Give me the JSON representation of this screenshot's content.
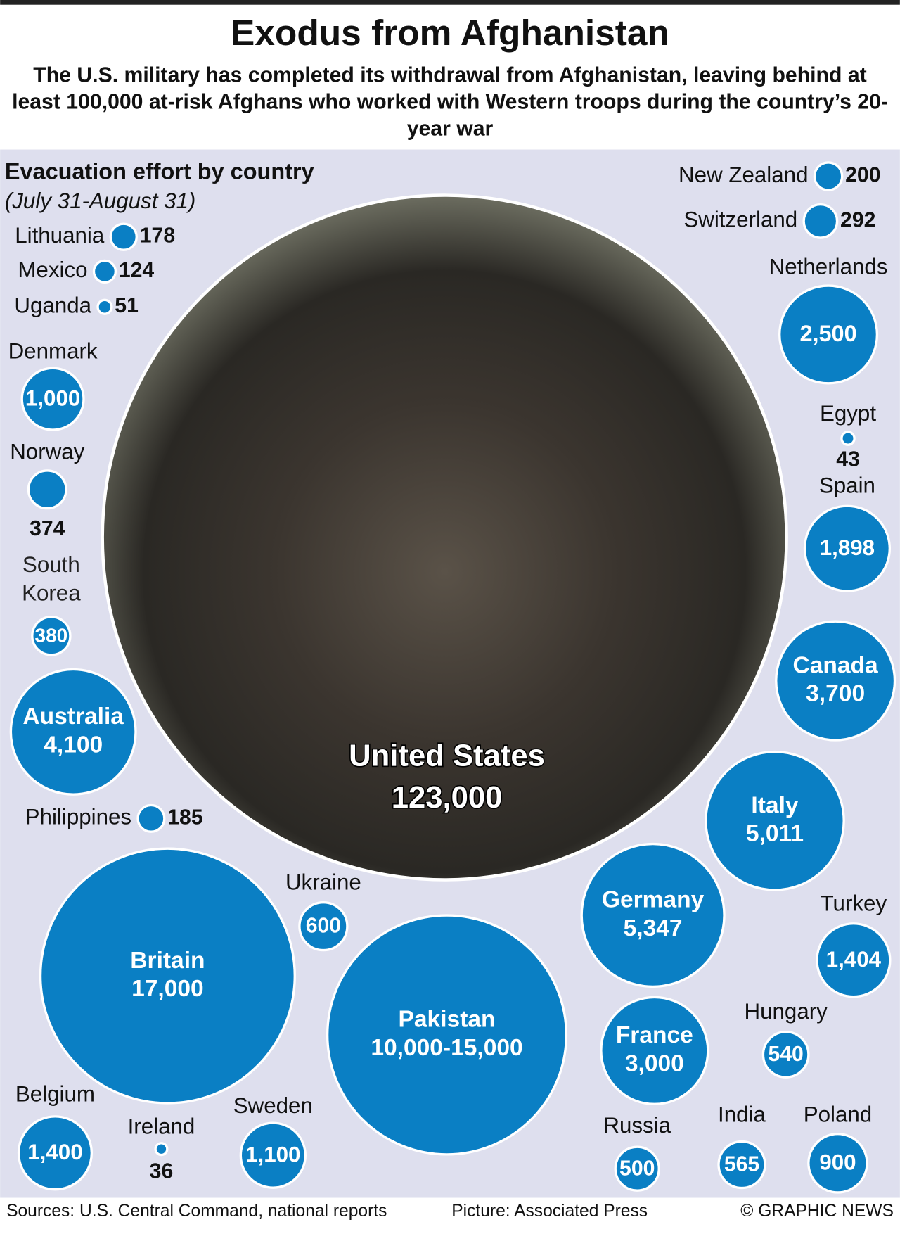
{
  "header": {
    "title": "Exodus from Afghanistan",
    "subtitle": "The U.S. military has completed its withdrawal from Afghanistan, leaving behind at least 100,000 at-risk Afghans who worked with Western troops during the country’s 20-year war"
  },
  "chart_data": {
    "type": "bubble",
    "title": "Evacuation effort by country",
    "subtitle": "(July 31-August 31)",
    "color": "#0a7fc4",
    "categories": [
      "United States",
      "Britain",
      "Pakistan",
      "Germany",
      "Italy",
      "Australia",
      "Canada",
      "France",
      "Netherlands",
      "Spain",
      "Turkey",
      "Belgium",
      "Sweden",
      "Denmark",
      "Poland",
      "Ukraine",
      "India",
      "Hungary",
      "Russia",
      "South Korea",
      "Norway",
      "Switzerland",
      "New Zealand",
      "Philippines",
      "Lithuania",
      "Mexico",
      "Uganda",
      "Egypt",
      "Ireland"
    ],
    "values": [
      123000,
      17000,
      [
        10000,
        15000
      ],
      5347,
      5011,
      4100,
      3700,
      3000,
      2500,
      1898,
      1404,
      1400,
      1100,
      1000,
      900,
      600,
      565,
      540,
      500,
      380,
      374,
      292,
      200,
      185,
      178,
      124,
      51,
      43,
      36
    ],
    "value_labels": [
      "123,000",
      "17,000",
      "10,000-15,000",
      "5,347",
      "5,011",
      "4,100",
      "3,700",
      "3,000",
      "2,500",
      "1,898",
      "1,404",
      "1,400",
      "1,100",
      "1,000",
      "900",
      "600",
      "565",
      "540",
      "500",
      "380",
      "374",
      "292",
      "200",
      "185",
      "178",
      "124",
      "51",
      "43",
      "36"
    ]
  },
  "footer": {
    "sources": "Sources: U.S. Central Command, national reports",
    "picture": "Picture: Associated Press",
    "credit": "© GRAPHIC NEWS"
  }
}
